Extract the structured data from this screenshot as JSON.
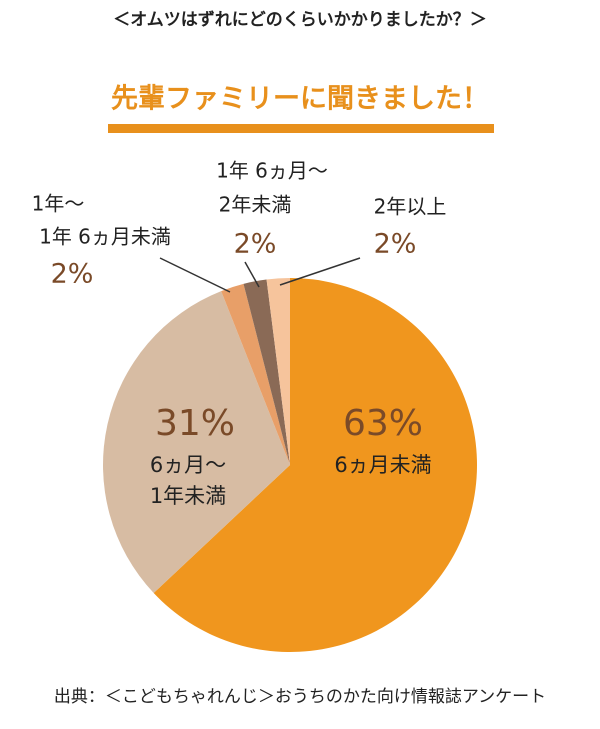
{
  "chart_data": {
    "type": "pie",
    "title": "＜オムツはずれにどのくらいかかりましたか？＞",
    "subtitle": "先輩ファミリーに聞きました！",
    "source": "出典：＜こどもちゃれんじ＞おうちのかた向け情報誌アンケート",
    "categories": [
      [
        "6ヵ月未満"
      ],
      [
        "6ヵ月〜",
        "1年未満"
      ],
      [
        "1年〜",
        "1年 6ヵ月未満"
      ],
      [
        "1年 6ヵ月〜",
        "2年未満"
      ],
      [
        "2年以上"
      ]
    ],
    "values": [
      63,
      31,
      2,
      2,
      2
    ],
    "value_labels": [
      "63%",
      "31%",
      "2%",
      "2%",
      "2%"
    ],
    "colors": [
      "#f0961e",
      "#d7bca3",
      "#e89f68",
      "#8a6a56",
      "#f6c49c"
    ]
  }
}
